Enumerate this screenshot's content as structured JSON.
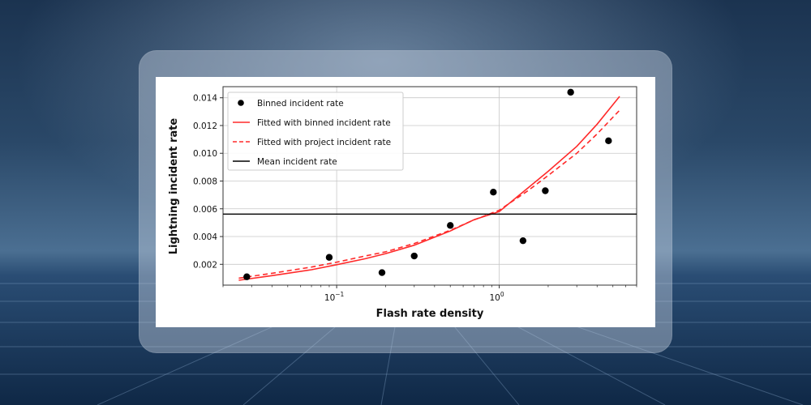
{
  "chart_data": {
    "type": "scatter",
    "xlabel": "Flash rate density",
    "ylabel": "Lightning incident rate",
    "xscale": "log",
    "xlim": [
      0.02,
      7
    ],
    "ylim": [
      0.0005,
      0.0148
    ],
    "x_ticks": [
      {
        "value": 0.1,
        "base": "10",
        "exp": "−1"
      },
      {
        "value": 1,
        "base": "10",
        "exp": "0"
      }
    ],
    "y_ticks": [
      {
        "value": 0.002,
        "label": "0.002"
      },
      {
        "value": 0.004,
        "label": "0.004"
      },
      {
        "value": 0.006,
        "label": "0.006"
      },
      {
        "value": 0.008,
        "label": "0.008"
      },
      {
        "value": 0.01,
        "label": "0.010"
      },
      {
        "value": 0.012,
        "label": "0.012"
      },
      {
        "value": 0.014,
        "label": "0.014"
      }
    ],
    "grid": true,
    "legend_position": "top-left",
    "series": [
      {
        "name": "Binned incident rate",
        "kind": "points",
        "color": "#000000",
        "x": [
          0.028,
          0.09,
          0.19,
          0.3,
          0.5,
          0.92,
          1.4,
          1.92,
          2.75,
          4.7
        ],
        "y": [
          0.0011,
          0.0025,
          0.0014,
          0.0026,
          0.0048,
          0.0072,
          0.0037,
          0.0073,
          0.0144,
          0.0109
        ]
      },
      {
        "name": "Fitted with binned incident rate",
        "kind": "line",
        "style": "solid",
        "color": "#ff2a2a",
        "x": [
          0.025,
          0.04,
          0.07,
          0.1,
          0.15,
          0.2,
          0.3,
          0.5,
          0.7,
          1,
          1.5,
          2,
          3,
          4,
          5.5
        ],
        "y": [
          0.00085,
          0.00118,
          0.00161,
          0.00197,
          0.0024,
          0.00277,
          0.00338,
          0.0044,
          0.00521,
          0.0058,
          0.0075,
          0.0087,
          0.0105,
          0.0121,
          0.0141
        ]
      },
      {
        "name": "Fitted with project incident rate",
        "kind": "line",
        "style": "dashed",
        "color": "#ff2a2a",
        "x": [
          0.025,
          0.04,
          0.07,
          0.1,
          0.15,
          0.2,
          0.3,
          0.5,
          0.7,
          1,
          1.5,
          2,
          3,
          4,
          5.5
        ],
        "y": [
          0.001,
          0.00135,
          0.0018,
          0.00215,
          0.0026,
          0.0029,
          0.0035,
          0.00445,
          0.0052,
          0.0059,
          0.0073,
          0.0084,
          0.01,
          0.0114,
          0.0131
        ]
      },
      {
        "name": "Mean incident rate",
        "kind": "hline",
        "color": "#000000",
        "value": 0.00562
      }
    ]
  }
}
